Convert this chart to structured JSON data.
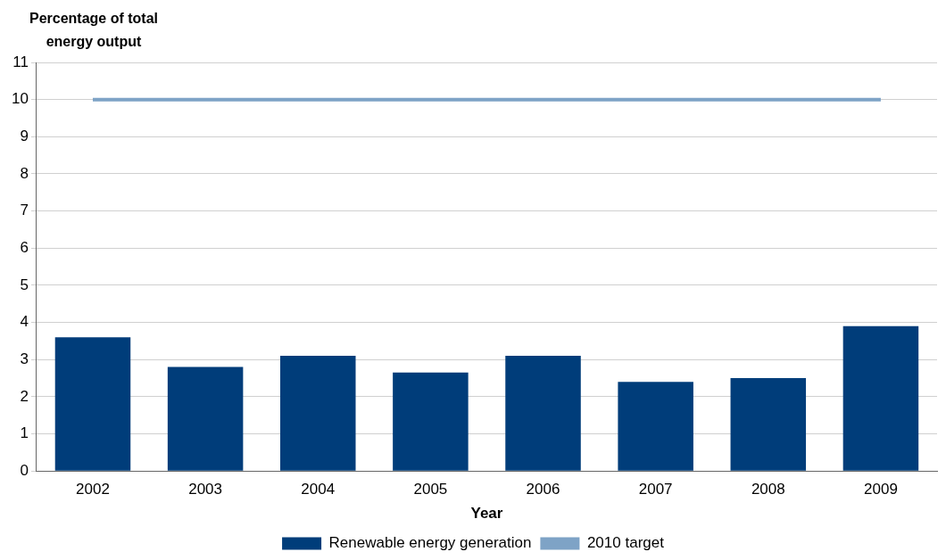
{
  "chart_data": {
    "type": "bar",
    "ylabel": "Percentage of total energy output",
    "xlabel": "Year",
    "categories": [
      "2002",
      "2003",
      "2004",
      "2005",
      "2006",
      "2007",
      "2008",
      "2009"
    ],
    "series": [
      {
        "name": "Renewable energy generation",
        "color": "#003d7a",
        "values": [
          3.6,
          2.8,
          3.1,
          2.65,
          3.1,
          2.4,
          2.5,
          3.9
        ]
      },
      {
        "name": "2010 target",
        "type": "line",
        "color": "#7ea3c6",
        "values": [
          10,
          10,
          10,
          10,
          10,
          10,
          10,
          10
        ]
      }
    ],
    "ylim": [
      0,
      11
    ],
    "yticks": [
      0,
      1,
      2,
      3,
      4,
      5,
      6,
      7,
      8,
      9,
      10,
      11
    ],
    "grid": "y",
    "legend": "bottom",
    "marker": "none"
  }
}
